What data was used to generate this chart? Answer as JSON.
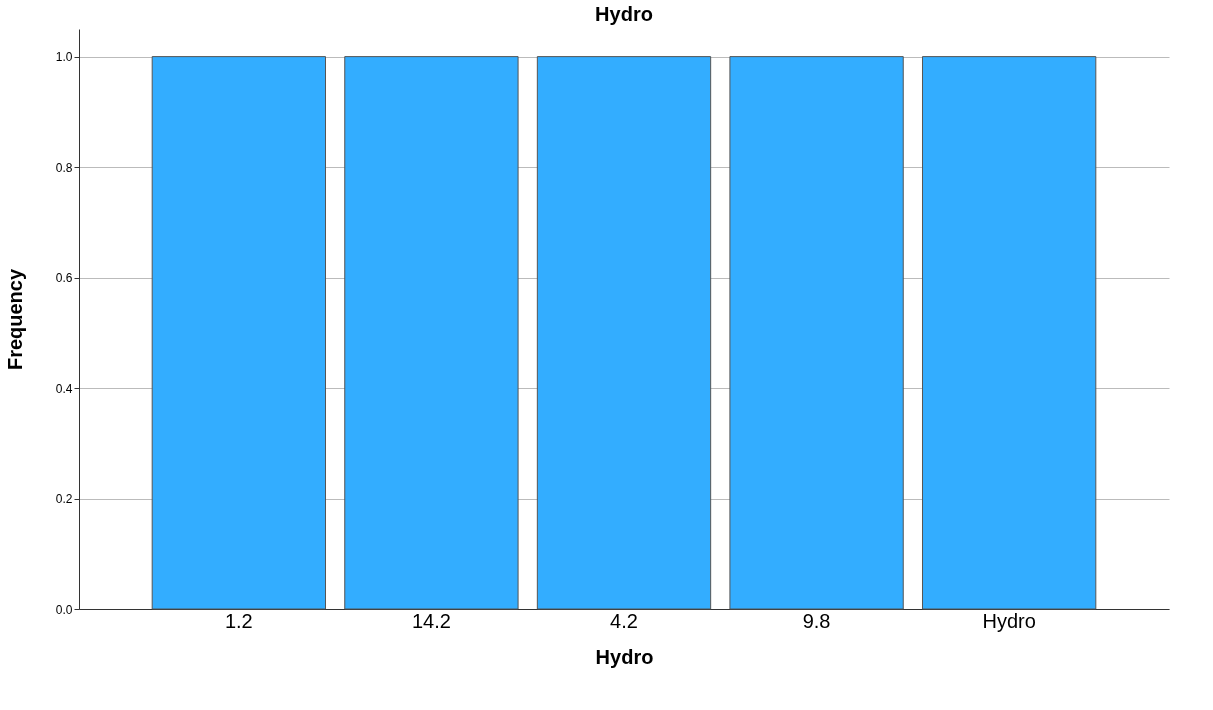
{
  "chart_data": {
    "type": "bar",
    "title": "Hydro",
    "xlabel": "Hydro",
    "ylabel": "Frequency",
    "categories": [
      "1.2",
      "14.2",
      "4.2",
      "9.8",
      "Hydro"
    ],
    "values": [
      1,
      1,
      1,
      1,
      1
    ],
    "color": "#33adff",
    "ylim": [
      0,
      1.05
    ],
    "yticks": [
      {
        "value": 0,
        "label": "0.0"
      },
      0.2,
      0.4,
      0.6,
      0.8,
      {
        "value": 1,
        "label": "1.0"
      }
    ],
    "grid": "y"
  }
}
